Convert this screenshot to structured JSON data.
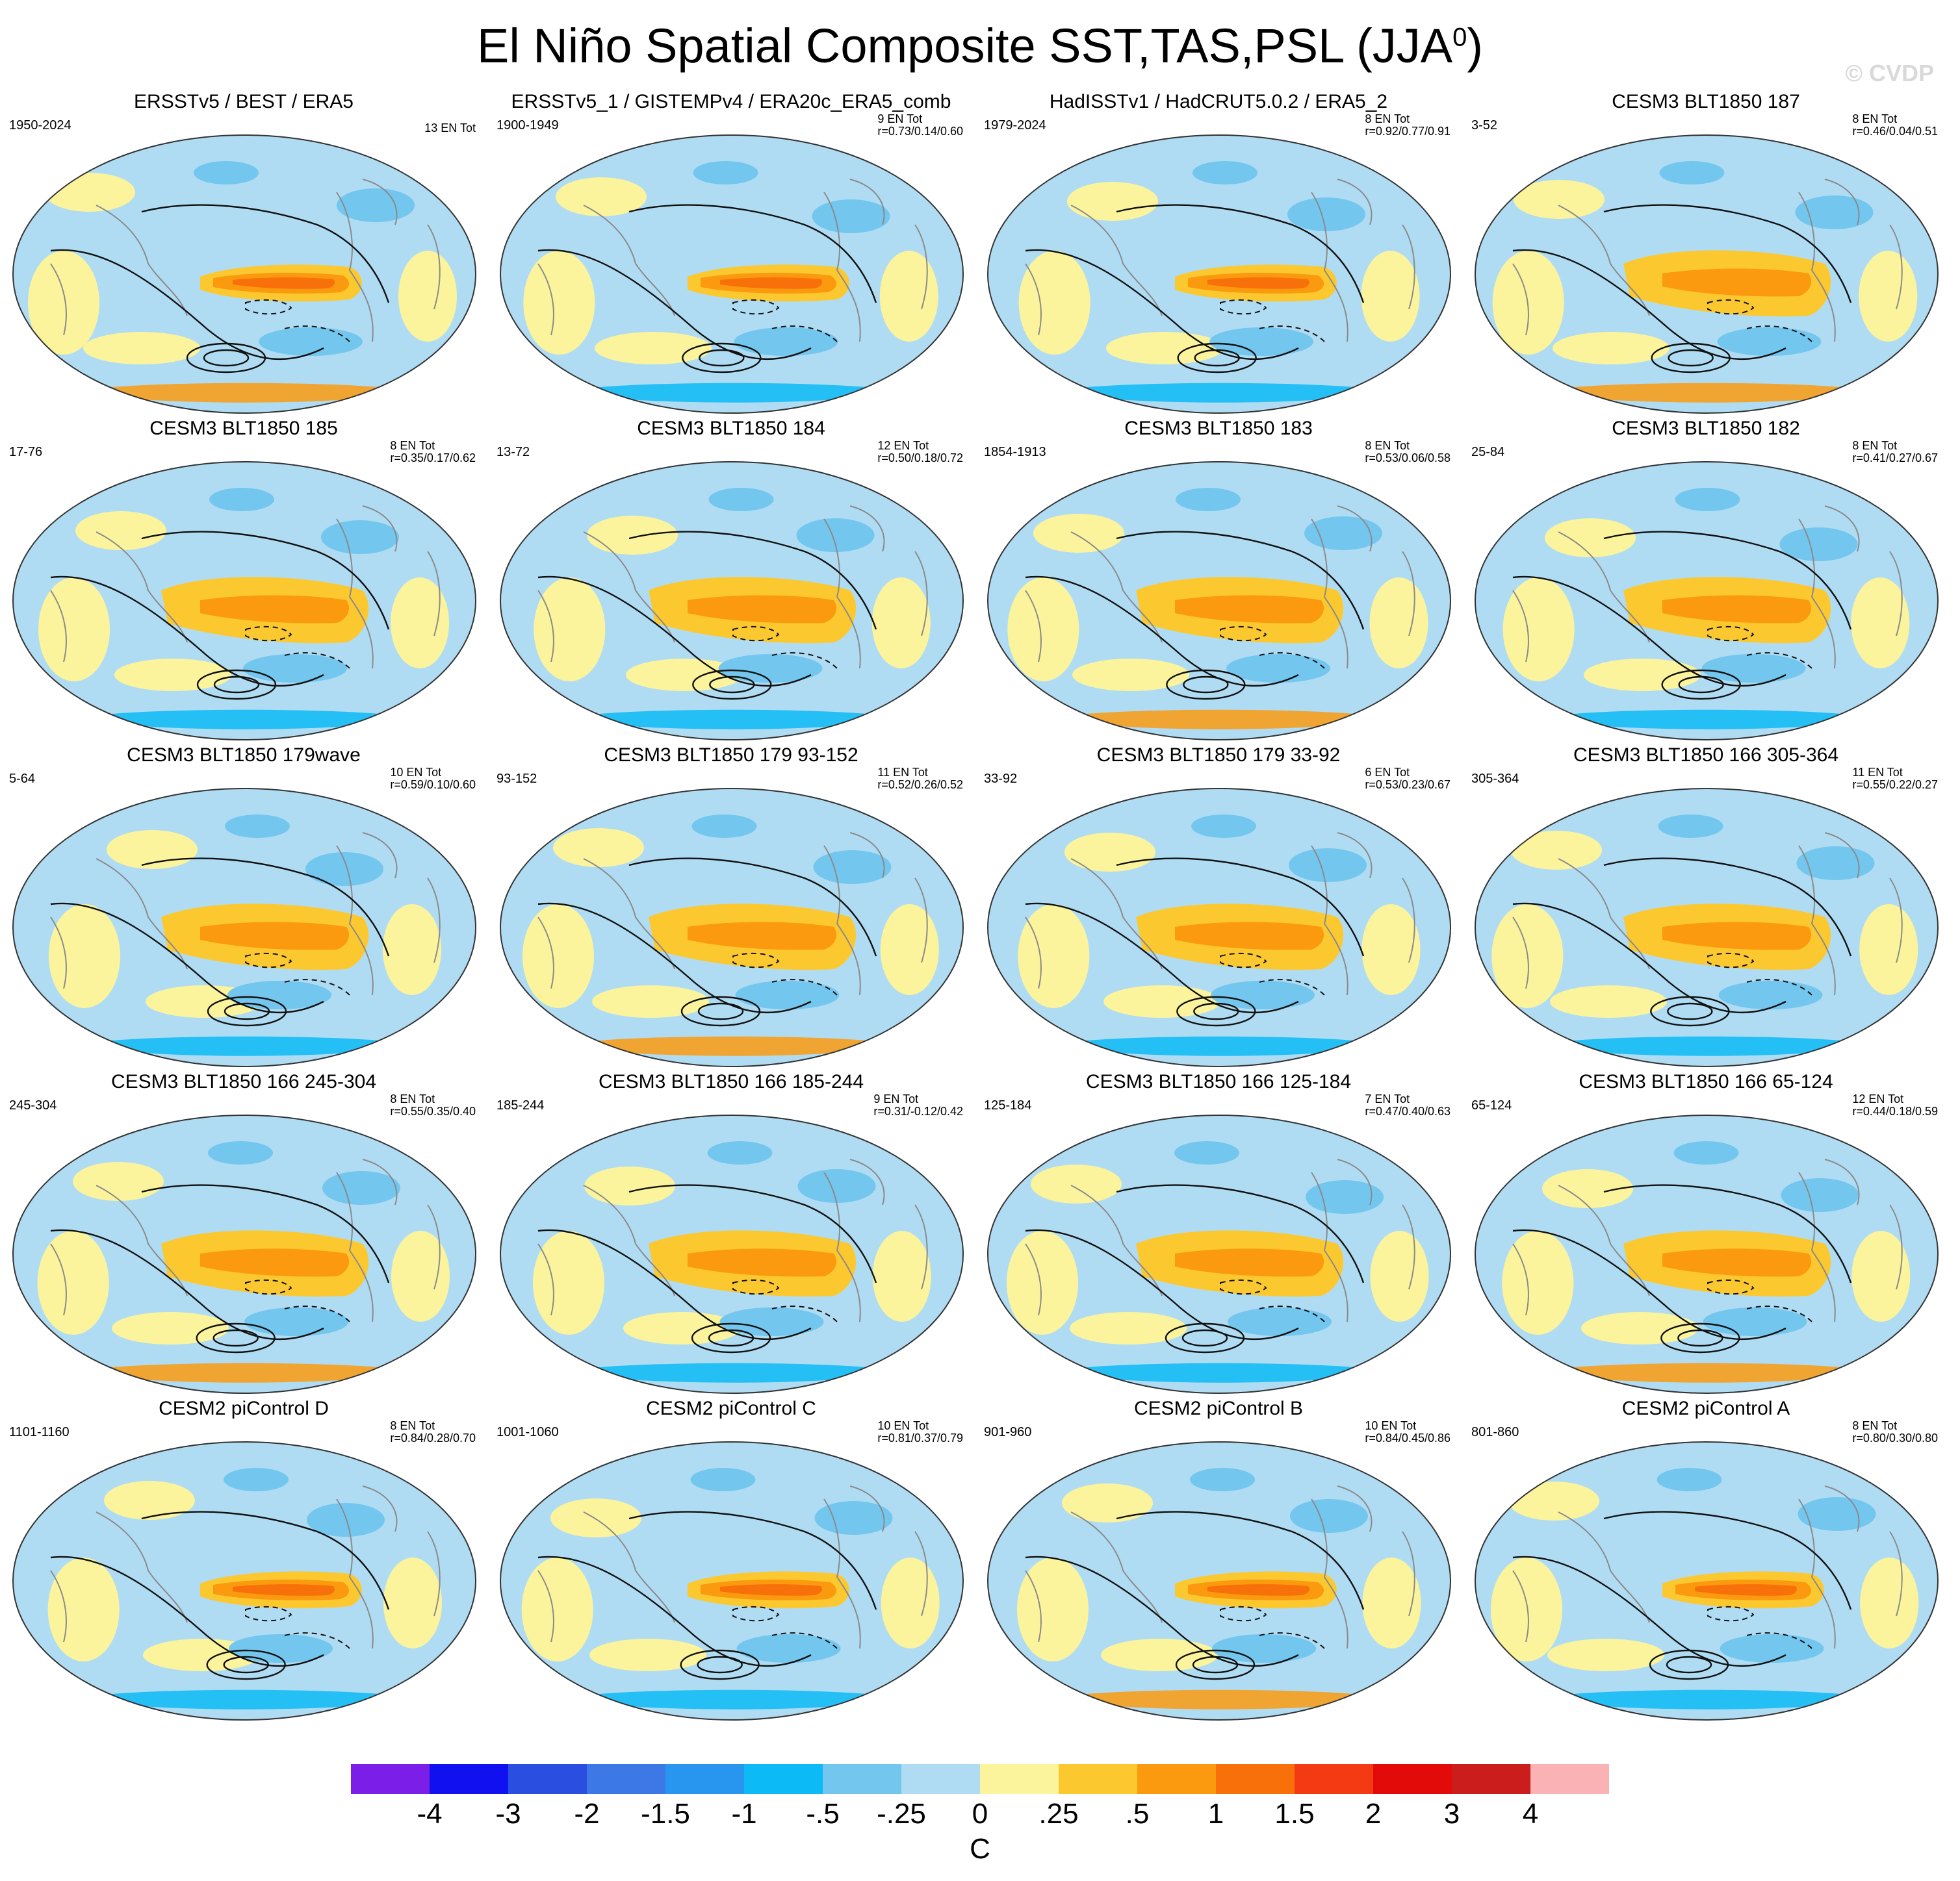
{
  "title_main": "El Niño Spatial Composite SST,TAS,PSL (JJA",
  "title_sup": "0",
  "title_close": ")",
  "watermark": "© CVDP",
  "panels": [
    {
      "title": "ERSSTv5 / BEST / ERA5",
      "years": "1950-2024",
      "count": "13 EN Tot",
      "corr": ""
    },
    {
      "title": "ERSSTv5_1 / GISTEMPv4 / ERA20c_ERA5_comb",
      "years": "1900-1949",
      "count": "9 EN Tot",
      "corr": "r=0.73/0.14/0.60"
    },
    {
      "title": "HadISSTv1 / HadCRUT5.0.2 / ERA5_2",
      "years": "1979-2024",
      "count": "8 EN Tot",
      "corr": "r=0.92/0.77/0.91"
    },
    {
      "title": "CESM3 BLT1850 187",
      "years": "3-52",
      "count": "8 EN Tot",
      "corr": "r=0.46/0.04/0.51"
    },
    {
      "title": "CESM3 BLT1850 185",
      "years": "17-76",
      "count": "8 EN Tot",
      "corr": "r=0.35/0.17/0.62"
    },
    {
      "title": "CESM3 BLT1850 184",
      "years": "13-72",
      "count": "12 EN Tot",
      "corr": "r=0.50/0.18/0.72"
    },
    {
      "title": "CESM3 BLT1850 183",
      "years": "1854-1913",
      "count": "8 EN Tot",
      "corr": "r=0.53/0.06/0.58"
    },
    {
      "title": "CESM3 BLT1850 182",
      "years": "25-84",
      "count": "8 EN Tot",
      "corr": "r=0.41/0.27/0.67"
    },
    {
      "title": "CESM3 BLT1850 179wave",
      "years": "5-64",
      "count": "10 EN Tot",
      "corr": "r=0.59/0.10/0.60"
    },
    {
      "title": "CESM3 BLT1850 179 93-152",
      "years": "93-152",
      "count": "11 EN Tot",
      "corr": "r=0.52/0.26/0.52"
    },
    {
      "title": "CESM3 BLT1850 179 33-92",
      "years": "33-92",
      "count": "6 EN Tot",
      "corr": "r=0.53/0.23/0.67"
    },
    {
      "title": "CESM3 BLT1850 166 305-364",
      "years": "305-364",
      "count": "11 EN Tot",
      "corr": "r=0.55/0.22/0.27"
    },
    {
      "title": "CESM3 BLT1850 166 245-304",
      "years": "245-304",
      "count": "8 EN Tot",
      "corr": "r=0.55/0.35/0.40"
    },
    {
      "title": "CESM3 BLT1850 166 185-244",
      "years": "185-244",
      "count": "9 EN Tot",
      "corr": "r=0.31/-0.12/0.42"
    },
    {
      "title": "CESM3 BLT1850 166 125-184",
      "years": "125-184",
      "count": "7 EN Tot",
      "corr": "r=0.47/0.40/0.63"
    },
    {
      "title": "CESM3 BLT1850 166 65-124",
      "years": "65-124",
      "count": "12 EN Tot",
      "corr": "r=0.44/0.18/0.59"
    },
    {
      "title": "CESM2 piControl D",
      "years": "1101-1160",
      "count": "8 EN Tot",
      "corr": "r=0.84/0.28/0.70"
    },
    {
      "title": "CESM2 piControl C",
      "years": "1001-1060",
      "count": "10 EN Tot",
      "corr": "r=0.81/0.37/0.79"
    },
    {
      "title": "CESM2 piControl B",
      "years": "901-960",
      "count": "10 EN Tot",
      "corr": "r=0.84/0.45/0.86"
    },
    {
      "title": "CESM2 piControl A",
      "years": "801-860",
      "count": "8 EN Tot",
      "corr": "r=0.80/0.30/0.80"
    }
  ],
  "colorbar": {
    "colors": [
      "#7a1ee8",
      "#1010f0",
      "#2a4fe0",
      "#3c78e6",
      "#2896ee",
      "#0cbaf5",
      "#73c6ee",
      "#b0dcf3",
      "#fcf49c",
      "#fcc830",
      "#fb9a0f",
      "#f8700a",
      "#f33a12",
      "#e30a0a",
      "#cc1d1d",
      "#fbb2b4"
    ],
    "labels": [
      "-4",
      "-3",
      "-2",
      "-1.5",
      "-1",
      "-.5",
      "-.25",
      "0",
      ".25",
      ".5",
      "1",
      "1.5",
      "2",
      "3",
      "4"
    ],
    "unit": "C"
  },
  "palette": {
    "ocean_base": "#b0dcf3",
    "warm_light": "#fcf49c",
    "warm_mid": "#fcc830",
    "warm_strong": "#fb9a0f",
    "warm_vstrong": "#f8700a",
    "cool_mid": "#73c6ee",
    "cool_strong": "#0cbaf5",
    "cool_vstrong": "#2896ee",
    "coast": "#8a8a8a",
    "contour": "#111111"
  }
}
